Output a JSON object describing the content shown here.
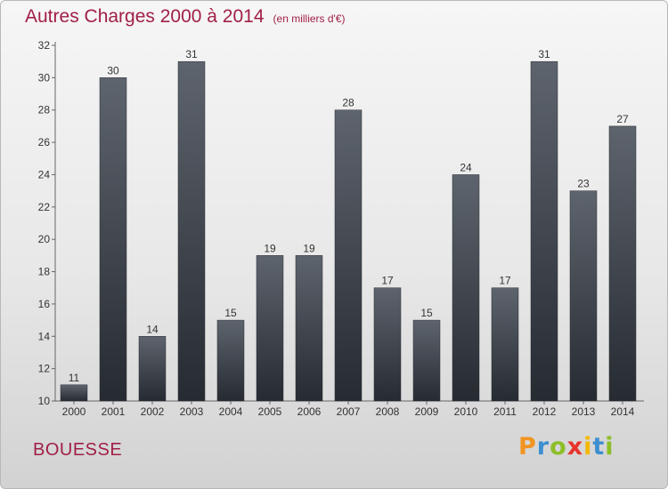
{
  "chart_data": {
    "type": "bar",
    "title": "Autres Charges 2000 à 2014",
    "subtitle": "(en milliers d'€)",
    "xlabel": "",
    "ylabel": "",
    "categories": [
      "2000",
      "2001",
      "2002",
      "2003",
      "2004",
      "2005",
      "2006",
      "2007",
      "2008",
      "2009",
      "2010",
      "2011",
      "2012",
      "2013",
      "2014"
    ],
    "values": [
      11,
      30,
      14,
      31,
      15,
      19,
      19,
      28,
      17,
      15,
      24,
      17,
      31,
      23,
      27
    ],
    "ylim": [
      10,
      32
    ],
    "yticks": [
      10,
      12,
      14,
      16,
      18,
      20,
      22,
      24,
      26,
      28,
      30,
      32
    ],
    "grid": false,
    "legend": "none",
    "bar_color": "#3a3f47"
  },
  "footer": {
    "commune": "BOUESSE",
    "brand": "Proxiti"
  },
  "colors": {
    "title": "#a11f46",
    "brand_letters": [
      "#f19420",
      "#3d8fd0",
      "#8cbf26",
      "#e8332a",
      "#f5b800",
      "#3d8fd0",
      "#8cbf26"
    ]
  }
}
